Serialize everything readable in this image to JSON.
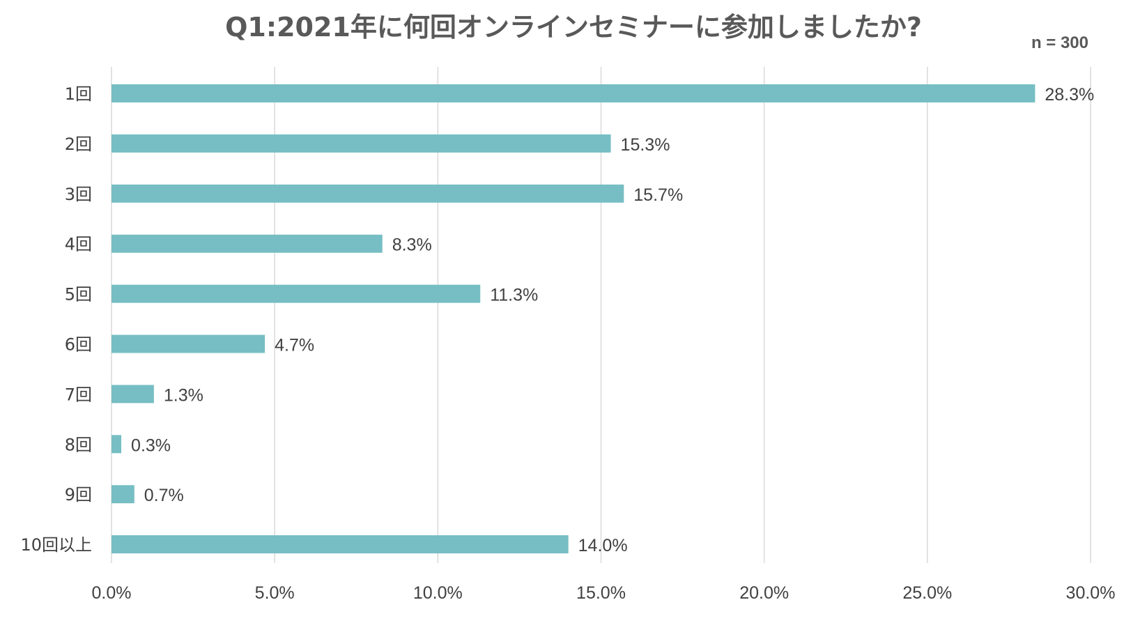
{
  "chart_data": {
    "type": "bar",
    "orientation": "horizontal",
    "title": "Q1:2021年に何回オンラインセミナーに参加しましたか?",
    "note": "n = 300",
    "categories": [
      "1回",
      "2回",
      "3回",
      "4回",
      "5回",
      "6回",
      "7回",
      "8回",
      "9回",
      "10回以上"
    ],
    "values": [
      28.3,
      15.3,
      15.7,
      8.3,
      11.3,
      4.7,
      1.3,
      0.3,
      0.7,
      14.0
    ],
    "data_labels": [
      "28.3%",
      "15.3%",
      "15.7%",
      "8.3%",
      "11.3%",
      "4.7%",
      "1.3%",
      "0.3%",
      "0.7%",
      "14.0%"
    ],
    "x_ticks": [
      "0.0%",
      "5.0%",
      "10.0%",
      "15.0%",
      "20.0%",
      "25.0%",
      "30.0%"
    ],
    "xlim": [
      0,
      30
    ],
    "grid": true,
    "legend": "none",
    "bar_color": "#76bec3"
  }
}
